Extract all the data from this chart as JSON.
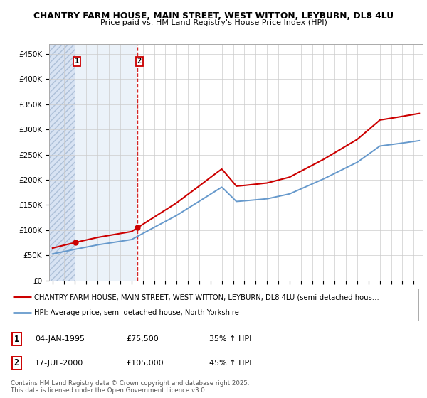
{
  "title": "CHANTRY FARM HOUSE, MAIN STREET, WEST WITTON, LEYBURN, DL8 4LU",
  "subtitle": "Price paid vs. HM Land Registry's House Price Index (HPI)",
  "ylabel_ticks": [
    "£0",
    "£50K",
    "£100K",
    "£150K",
    "£200K",
    "£250K",
    "£300K",
    "£350K",
    "£400K",
    "£450K"
  ],
  "ytick_vals": [
    0,
    50000,
    100000,
    150000,
    200000,
    250000,
    300000,
    350000,
    400000,
    450000
  ],
  "ylim": [
    0,
    470000
  ],
  "sale1_date_label": "04-JAN-1995",
  "sale1_price": 75500,
  "sale1_hpi_pct": "35% ↑ HPI",
  "sale2_date_label": "17-JUL-2000",
  "sale2_price": 105000,
  "sale2_hpi_pct": "45% ↑ HPI",
  "legend_line1": "CHANTRY FARM HOUSE, MAIN STREET, WEST WITTON, LEYBURN, DL8 4LU (semi-detached hous…",
  "legend_line2": "HPI: Average price, semi-detached house, North Yorkshire",
  "footnote": "Contains HM Land Registry data © Crown copyright and database right 2025.\nThis data is licensed under the Open Government Licence v3.0.",
  "red_color": "#cc0000",
  "blue_color": "#6699cc",
  "bg_before_facecolor": "#c8d8ee",
  "bg_between_facecolor": "#dce8f5",
  "sale1_x": 1995.01,
  "sale2_x": 2000.54,
  "xmin": 1992.7,
  "xmax": 2025.8
}
